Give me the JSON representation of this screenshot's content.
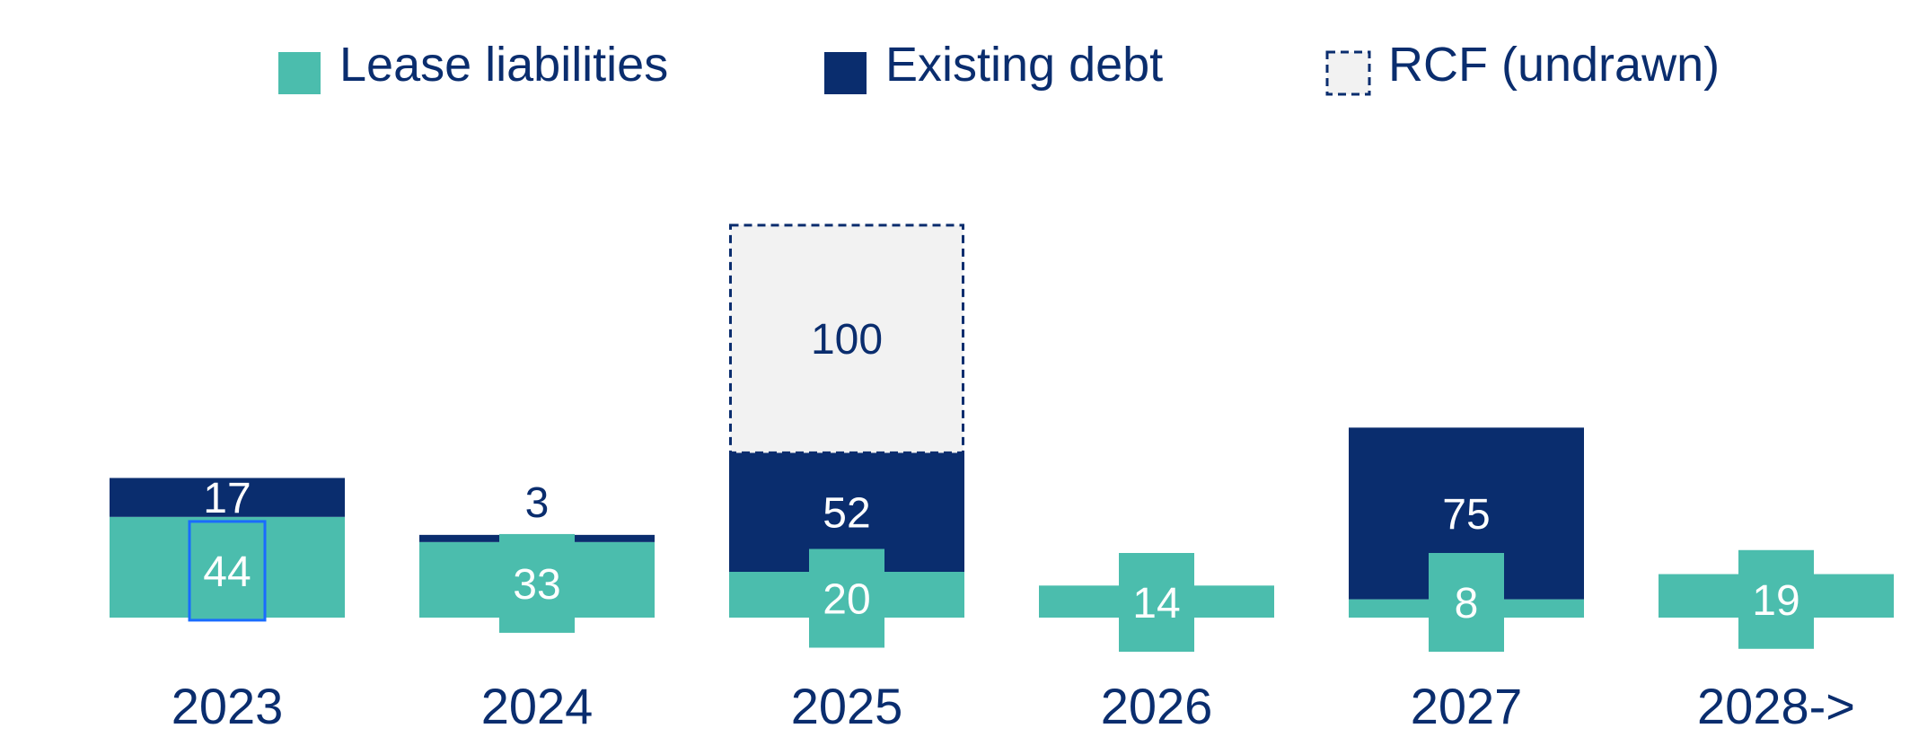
{
  "chart_data": {
    "type": "bar",
    "stacked": true,
    "categories": [
      "2023",
      "2024",
      "2025",
      "2026",
      "2027",
      "2028->"
    ],
    "series": [
      {
        "name": "Lease liabilities",
        "values": [
          44,
          33,
          20,
          14,
          8,
          19
        ],
        "color": "#4bbdad"
      },
      {
        "name": "Existing debt",
        "values": [
          17,
          3,
          52,
          null,
          75,
          null
        ],
        "color": "#0a2d6e"
      },
      {
        "name": "RCF (undrawn)",
        "values": [
          null,
          null,
          100,
          null,
          null,
          null
        ],
        "color": "#f2f2f2",
        "border": "dashed"
      }
    ],
    "title": "",
    "xlabel": "",
    "ylabel": "",
    "grid": false,
    "legend_position": "top"
  }
}
